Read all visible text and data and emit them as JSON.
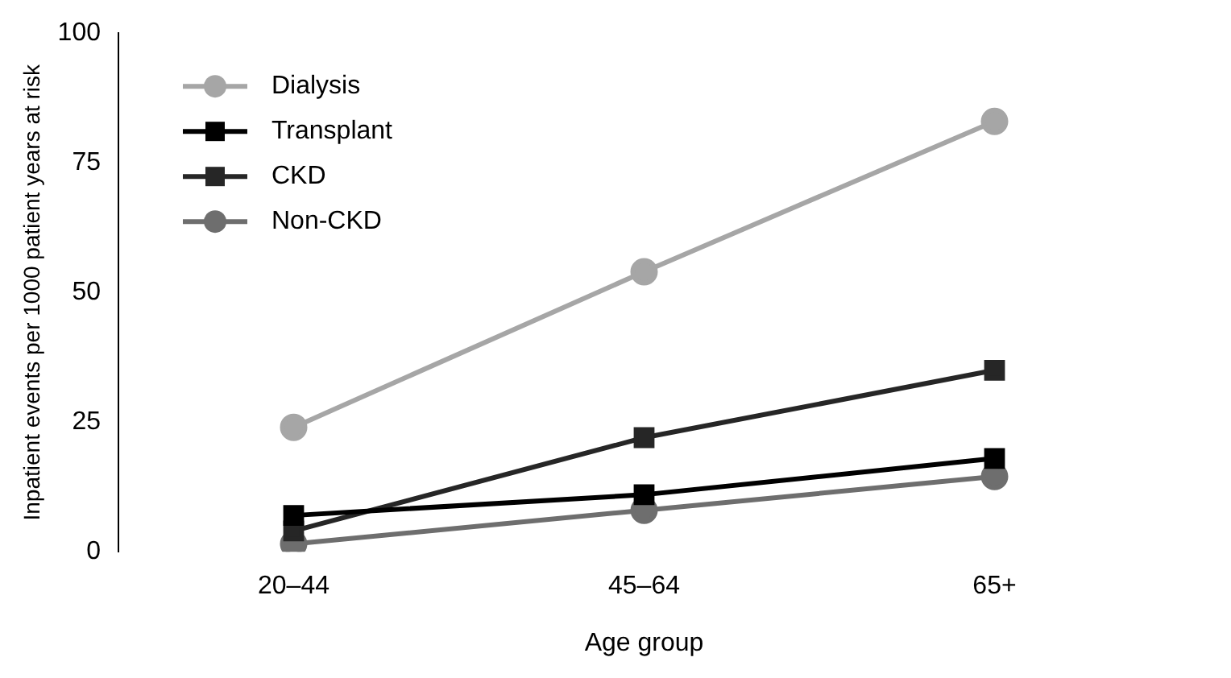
{
  "chart_data": {
    "type": "line",
    "xlabel": "Age group",
    "ylabel": "Inpatient events per 1000 patient years at risk",
    "categories": [
      "20–44",
      "45–64",
      "65+"
    ],
    "series": [
      {
        "name": "Dialysis",
        "color": "#a6a6a6",
        "marker": "circle",
        "values": [
          24,
          54,
          83
        ]
      },
      {
        "name": "Transplant",
        "color": "#000000",
        "marker": "square",
        "values": [
          7,
          11,
          18
        ]
      },
      {
        "name": "CKD",
        "color": "#262626",
        "marker": "square",
        "values": [
          4,
          22,
          35
        ]
      },
      {
        "name": "Non-CKD",
        "color": "#6e6e6e",
        "marker": "circle",
        "values": [
          1.5,
          8,
          14.5
        ]
      }
    ],
    "ylim": [
      0,
      100
    ],
    "yticks": [
      0,
      25,
      50,
      75,
      100
    ],
    "grid": false,
    "legend": "top left"
  }
}
